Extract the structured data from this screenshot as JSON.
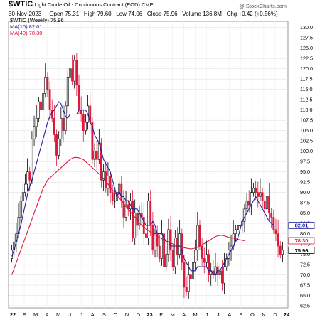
{
  "header": {
    "ticker": "$WTIC",
    "contract": "Light Crude Oil - Continuous Contract (EOD) CME",
    "watermark": "@ StockCharts.com",
    "date": "30-Nov-2023",
    "open_label": "Open",
    "open": "75.31",
    "high_label": "High",
    "high": "79.60",
    "low_label": "Low",
    "low": "74.06",
    "close_label": "Close",
    "close": "75.96",
    "volume_label": "Volume",
    "volume": "136.8M",
    "chg_label": "Chg",
    "chg": "+0.42 (+0.56%)"
  },
  "legend": [
    {
      "label": "$WTIC (Weekly) 75.96",
      "color": "#000000"
    },
    {
      "label": "MA(10) 82.01",
      "color": "#1f1f9e"
    },
    {
      "label": "MA(40) 78.30",
      "color": "#e0163a"
    }
  ],
  "chart_data": {
    "type": "candlestick",
    "timeframe": "weekly",
    "x_labels": [
      "22",
      "F",
      "M",
      "A",
      "M",
      "J",
      "J",
      "A",
      "S",
      "O",
      "N",
      "D",
      "23",
      "F",
      "M",
      "A",
      "M",
      "J",
      "J",
      "A",
      "S",
      "O",
      "N",
      "D",
      "24"
    ],
    "y_ticks": [
      "130.0",
      "127.5",
      "125.0",
      "122.5",
      "120.0",
      "117.5",
      "115.0",
      "112.5",
      "110.0",
      "107.5",
      "105.0",
      "102.5",
      "100.0",
      "97.5",
      "95.0",
      "92.5",
      "90.0",
      "87.5",
      "85.0",
      "82.5",
      "80.0",
      "77.5",
      "75.0",
      "72.5",
      "70.0",
      "67.5",
      "65.0",
      "62.5"
    ],
    "y_tick_values": [
      130,
      127.5,
      125,
      122.5,
      120,
      117.5,
      115,
      112.5,
      110,
      107.5,
      105,
      102.5,
      100,
      97.5,
      95,
      92.5,
      90,
      87.5,
      85,
      82.5,
      80,
      77.5,
      75,
      72.5,
      70,
      67.5,
      65,
      62.5
    ],
    "ylim": [
      62.0,
      131.5
    ],
    "price_tags": [
      {
        "label": "82.01",
        "value": 82.01,
        "color": "#1f1f9e"
      },
      {
        "label": "78.30",
        "value": 78.3,
        "color": "#e0163a"
      },
      {
        "label": "75.96",
        "value": 75.96,
        "color": "#000000"
      }
    ],
    "closes": [
      76,
      78,
      80,
      84,
      88,
      90,
      92,
      95,
      93,
      103,
      106,
      108,
      112,
      110,
      114,
      118,
      115,
      110,
      108,
      104,
      99,
      103,
      108,
      105,
      111,
      118,
      120,
      117,
      122,
      116,
      110,
      109,
      105,
      107,
      111,
      107,
      98,
      100,
      98,
      102,
      93,
      95,
      91,
      94,
      90,
      88,
      88,
      90,
      92,
      88,
      84,
      87,
      86,
      88,
      79,
      85,
      82,
      85,
      84,
      80,
      79,
      88,
      82,
      76,
      80,
      77,
      74,
      80,
      72,
      75,
      81,
      76,
      72,
      79,
      75,
      80,
      73,
      67,
      66,
      70,
      69,
      73,
      76,
      82,
      77,
      74,
      73,
      75,
      70,
      71,
      70,
      72,
      70,
      71,
      68,
      72,
      74,
      76,
      77,
      80,
      81,
      82,
      82,
      83,
      86,
      88,
      87,
      90,
      91,
      90,
      89,
      90,
      88,
      86,
      89,
      85,
      84,
      81,
      80,
      77,
      75,
      76
    ],
    "ma10": [
      74.5,
      76,
      78,
      80,
      82,
      84.5,
      87,
      89.5,
      91.5,
      93,
      95,
      97,
      99,
      101,
      103,
      105,
      107,
      108.5,
      109.5,
      110,
      111,
      112,
      111.5,
      110,
      108.5,
      108,
      109,
      109,
      109,
      109,
      110,
      110,
      110,
      110,
      109,
      107,
      106,
      104,
      103,
      102,
      100,
      98,
      97,
      96,
      95,
      93,
      91,
      89,
      90,
      89,
      89,
      88,
      88,
      87,
      86,
      86,
      86,
      85,
      84,
      83,
      82,
      82,
      82,
      83,
      82,
      80,
      80,
      80,
      79,
      78,
      78,
      77,
      77,
      77,
      77,
      77,
      76,
      74,
      73,
      72,
      71,
      71,
      71,
      72,
      72,
      72,
      72,
      72,
      71,
      71,
      70,
      70,
      71,
      71,
      72,
      73,
      74,
      75,
      76,
      77,
      78,
      79,
      81,
      83,
      84,
      85,
      86,
      87,
      88,
      89,
      88,
      87,
      86,
      85,
      84,
      83,
      82.5,
      82
    ],
    "ma40": [
      70,
      71.5,
      73,
      74.5,
      76,
      77.5,
      79,
      80.5,
      82,
      83.5,
      85,
      86.5,
      88,
      89.5,
      91,
      92,
      93,
      93.5,
      94,
      94.5,
      95,
      95.5,
      96,
      96.5,
      97,
      97.5,
      98,
      98.3,
      98.5,
      98.5,
      98.4,
      98.2,
      98,
      97.5,
      97,
      96.5,
      96,
      95.5,
      95,
      94.5,
      94,
      93.3,
      92.6,
      92,
      91.3,
      90.6,
      90,
      89.3,
      88.6,
      88,
      87.3,
      86.6,
      86,
      85.3,
      84.6,
      84,
      83.3,
      82.6,
      82,
      81.6,
      81.2,
      80.8,
      80.4,
      80,
      79.7,
      79.4,
      79.1,
      78.8,
      78.5,
      78.2,
      78,
      77.8,
      77.5,
      77.3,
      77.2,
      77,
      76.8,
      76.6,
      76.5,
      76.4,
      76.3,
      76.4,
      76.5,
      76.7,
      77,
      77.3,
      77.6,
      78,
      78.3,
      78.6,
      79,
      79.3,
      79.5,
      79.6,
      79.6,
      79.5,
      79.3,
      79.1,
      79,
      78.9,
      78.8,
      78.6,
      78.5,
      78.4,
      78.3
    ]
  }
}
